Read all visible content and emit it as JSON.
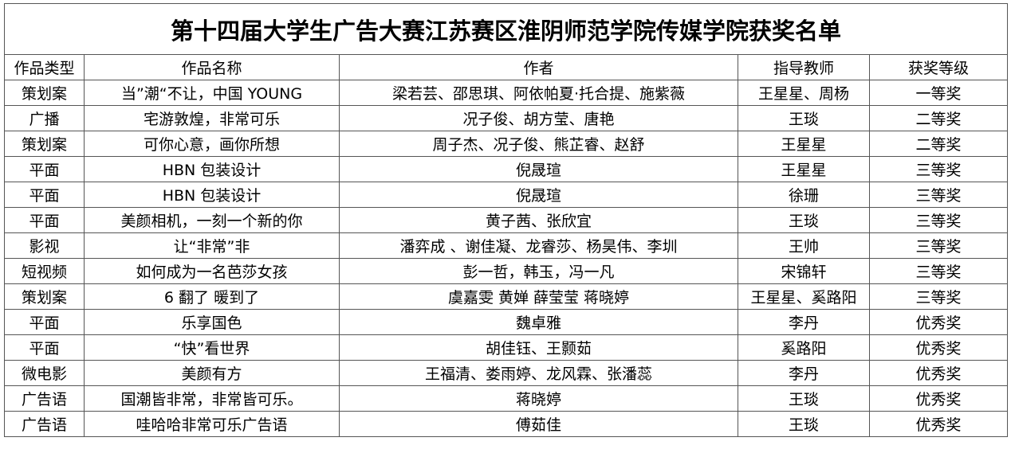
{
  "title": "第十四届大学生广告大赛江苏赛区淮阴师范学院传媒学院获奖名单",
  "headers": [
    "作品类型",
    "作品名称",
    "作者",
    "指导教师",
    "获奖等级"
  ],
  "rows": [
    [
      "策划案",
      "当”潮“不让，中国 YOUNG",
      "梁若芸、邵思琪、阿依帕夏·托合提、施紫薇",
      "王星星、周杨",
      "一等奖"
    ],
    [
      "广播",
      "宅游敦煌，非常可乐",
      "况子俊、胡方莹、唐艳",
      "王琰",
      "二等奖"
    ],
    [
      "策划案",
      "可你心意，画你所想",
      "周子杰、况子俊、熊芷睿、赵舒",
      "王星星",
      "二等奖"
    ],
    [
      "平面",
      "HBN 包装设计",
      "倪晟瑄",
      "王星星",
      "三等奖"
    ],
    [
      "平面",
      "HBN 包装设计",
      "倪晟瑄",
      "徐珊",
      "三等奖"
    ],
    [
      "平面",
      "美颜相机，一刻一个新的你",
      "黄子茜、张欣宜",
      "王琰",
      "三等奖"
    ],
    [
      "影视",
      "让“非常”非",
      "潘弈成 、谢佳凝、龙睿莎、杨昊伟、李圳",
      "王帅",
      "三等奖"
    ],
    [
      "短视频",
      "如何成为一名芭莎女孩",
      "彭一哲，韩玉，冯一凡",
      "宋锦轩",
      "三等奖"
    ],
    [
      "策划案",
      "6 翻了 暖到了",
      "虞嘉雯 黄婵 薛莹莹 蒋晓婷",
      "王星星、奚路阳",
      "三等奖"
    ],
    [
      "平面",
      "乐享国色",
      "魏卓雅",
      "李丹",
      "优秀奖"
    ],
    [
      "平面",
      "“快”看世界",
      "胡佳钰、王颢茹",
      "奚路阳",
      "优秀奖"
    ],
    [
      "微电影",
      "美颜有方",
      "王福清、娄雨婷、龙风霖、张潘蕊",
      "李丹",
      "优秀奖"
    ],
    [
      "广告语",
      "国潮皆非常，非常皆可乐。",
      "蒋晓婷",
      "王琰",
      "优秀奖"
    ],
    [
      "广告语",
      "哇哈哈非常可乐广告语",
      "傅茹佳",
      "王琰",
      "优秀奖"
    ]
  ]
}
